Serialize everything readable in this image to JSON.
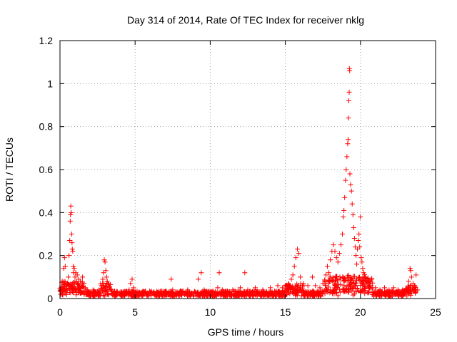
{
  "chart_data": {
    "type": "scatter",
    "title": "Day 314 of 2014, Rate Of TEC Index for receiver nklg",
    "xlabel": "GPS time / hours",
    "ylabel": "ROTI / TECUs",
    "xlim": [
      0,
      25
    ],
    "ylim": [
      0,
      1.2
    ],
    "x_ticks": [
      0,
      5,
      10,
      15,
      20,
      25
    ],
    "x_tick_labels": [
      "0",
      "5",
      "10",
      "15",
      "20",
      "25"
    ],
    "y_ticks": [
      0,
      0.2,
      0.4,
      0.6,
      0.8,
      1,
      1.2
    ],
    "y_tick_labels": [
      "0",
      "0.2",
      "0.4",
      "0.6",
      "0.8",
      "1",
      "1.2"
    ],
    "grid": true,
    "marker": "+",
    "color": "#ff0000",
    "series": [
      {
        "name": "ROTI",
        "points": [
          [
            0.05,
            0.02
          ],
          [
            0.1,
            0.05
          ],
          [
            0.15,
            0.08
          ],
          [
            0.2,
            0.03
          ],
          [
            0.25,
            0.14
          ],
          [
            0.3,
            0.19
          ],
          [
            0.35,
            0.15
          ],
          [
            0.4,
            0.06
          ],
          [
            0.45,
            0.04
          ],
          [
            0.5,
            0.07
          ],
          [
            0.55,
            0.1
          ],
          [
            0.6,
            0.2
          ],
          [
            0.65,
            0.27
          ],
          [
            0.68,
            0.36
          ],
          [
            0.7,
            0.39
          ],
          [
            0.72,
            0.43
          ],
          [
            0.75,
            0.4
          ],
          [
            0.78,
            0.3
          ],
          [
            0.8,
            0.26
          ],
          [
            0.82,
            0.23
          ],
          [
            0.85,
            0.22
          ],
          [
            0.88,
            0.15
          ],
          [
            0.9,
            0.12
          ],
          [
            0.95,
            0.14
          ],
          [
            1.0,
            0.1
          ],
          [
            1.05,
            0.12
          ],
          [
            1.1,
            0.08
          ],
          [
            1.15,
            0.11
          ],
          [
            1.2,
            0.07
          ],
          [
            1.25,
            0.09
          ],
          [
            1.3,
            0.06
          ],
          [
            1.35,
            0.08
          ],
          [
            1.4,
            0.05
          ],
          [
            1.5,
            0.1
          ],
          [
            1.6,
            0.07
          ],
          [
            1.7,
            0.05
          ],
          [
            1.8,
            0.04
          ],
          [
            1.9,
            0.03
          ],
          [
            2.0,
            0.03
          ],
          [
            2.2,
            0.04
          ],
          [
            2.4,
            0.03
          ],
          [
            2.6,
            0.04
          ],
          [
            2.75,
            0.06
          ],
          [
            2.85,
            0.09
          ],
          [
            2.9,
            0.12
          ],
          [
            2.95,
            0.18
          ],
          [
            3.0,
            0.17
          ],
          [
            3.05,
            0.13
          ],
          [
            3.1,
            0.1
          ],
          [
            3.15,
            0.08
          ],
          [
            3.2,
            0.07
          ],
          [
            3.3,
            0.05
          ],
          [
            3.4,
            0.04
          ],
          [
            3.6,
            0.03
          ],
          [
            3.8,
            0.03
          ],
          [
            4.0,
            0.02
          ],
          [
            4.3,
            0.03
          ],
          [
            4.6,
            0.04
          ],
          [
            4.7,
            0.07
          ],
          [
            4.8,
            0.09
          ],
          [
            4.9,
            0.05
          ],
          [
            5.0,
            0.03
          ],
          [
            5.5,
            0.02
          ],
          [
            6.0,
            0.03
          ],
          [
            6.5,
            0.02
          ],
          [
            7.0,
            0.03
          ],
          [
            7.4,
            0.09
          ],
          [
            7.5,
            0.04
          ],
          [
            8.0,
            0.03
          ],
          [
            8.5,
            0.04
          ],
          [
            9.0,
            0.03
          ],
          [
            9.2,
            0.09
          ],
          [
            9.4,
            0.12
          ],
          [
            9.6,
            0.04
          ],
          [
            10.0,
            0.03
          ],
          [
            10.5,
            0.05
          ],
          [
            10.6,
            0.12
          ],
          [
            10.8,
            0.04
          ],
          [
            11.0,
            0.03
          ],
          [
            11.5,
            0.04
          ],
          [
            12.0,
            0.05
          ],
          [
            12.3,
            0.12
          ],
          [
            12.5,
            0.04
          ],
          [
            13.0,
            0.05
          ],
          [
            13.5,
            0.04
          ],
          [
            14.0,
            0.05
          ],
          [
            14.5,
            0.06
          ],
          [
            14.8,
            0.05
          ],
          [
            15.0,
            0.06
          ],
          [
            15.2,
            0.07
          ],
          [
            15.4,
            0.09
          ],
          [
            15.5,
            0.11
          ],
          [
            15.6,
            0.15
          ],
          [
            15.7,
            0.19
          ],
          [
            15.8,
            0.23
          ],
          [
            15.9,
            0.21
          ],
          [
            16.0,
            0.1
          ],
          [
            16.2,
            0.07
          ],
          [
            16.5,
            0.06
          ],
          [
            16.8,
            0.1
          ],
          [
            17.0,
            0.06
          ],
          [
            17.3,
            0.05
          ],
          [
            17.5,
            0.07
          ],
          [
            17.7,
            0.11
          ],
          [
            17.8,
            0.15
          ],
          [
            17.9,
            0.12
          ],
          [
            18.0,
            0.18
          ],
          [
            18.1,
            0.22
          ],
          [
            18.2,
            0.25
          ],
          [
            18.3,
            0.22
          ],
          [
            18.4,
            0.19
          ],
          [
            18.5,
            0.17
          ],
          [
            18.6,
            0.21
          ],
          [
            18.7,
            0.25
          ],
          [
            18.8,
            0.3
          ],
          [
            18.85,
            0.38
          ],
          [
            18.9,
            0.41
          ],
          [
            18.95,
            0.47
          ],
          [
            19.0,
            0.55
          ],
          [
            19.05,
            0.6
          ],
          [
            19.1,
            0.66
          ],
          [
            19.15,
            0.72
          ],
          [
            19.18,
            0.74
          ],
          [
            19.2,
            0.84
          ],
          [
            19.22,
            0.92
          ],
          [
            19.25,
            0.96
          ],
          [
            19.26,
            1.07
          ],
          [
            19.28,
            1.06
          ],
          [
            19.3,
            0.58
          ],
          [
            19.35,
            0.53
          ],
          [
            19.4,
            0.5
          ],
          [
            19.45,
            0.44
          ],
          [
            19.5,
            0.39
          ],
          [
            19.55,
            0.33
          ],
          [
            19.6,
            0.28
          ],
          [
            19.65,
            0.24
          ],
          [
            19.7,
            0.2
          ],
          [
            19.75,
            0.16
          ],
          [
            19.8,
            0.23
          ],
          [
            19.85,
            0.27
          ],
          [
            19.9,
            0.3
          ],
          [
            19.95,
            0.24
          ],
          [
            20.0,
            0.38
          ],
          [
            20.05,
            0.19
          ],
          [
            20.1,
            0.17
          ],
          [
            20.15,
            0.14
          ],
          [
            20.2,
            0.12
          ],
          [
            20.3,
            0.1
          ],
          [
            20.4,
            0.08
          ],
          [
            20.5,
            0.07
          ],
          [
            20.6,
            0.06
          ],
          [
            20.8,
            0.05
          ],
          [
            21.0,
            0.05
          ],
          [
            21.3,
            0.04
          ],
          [
            21.6,
            0.05
          ],
          [
            21.9,
            0.04
          ],
          [
            22.2,
            0.05
          ],
          [
            22.5,
            0.04
          ],
          [
            22.8,
            0.04
          ],
          [
            23.0,
            0.04
          ],
          [
            23.2,
            0.08
          ],
          [
            23.3,
            0.14
          ],
          [
            23.35,
            0.13
          ],
          [
            23.4,
            0.1
          ],
          [
            23.5,
            0.07
          ],
          [
            23.6,
            0.06
          ],
          [
            23.7,
            0.11
          ],
          [
            23.8,
            0.04
          ]
        ]
      }
    ]
  }
}
